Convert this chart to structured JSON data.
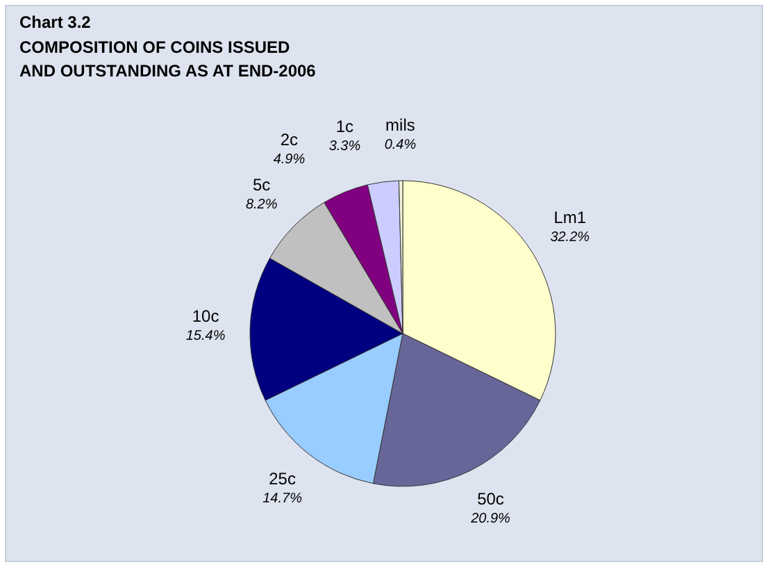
{
  "chart_data": {
    "type": "pie",
    "title": "Chart 3.2",
    "subtitle": "COMPOSITION OF COINS ISSUED\nAND OUTSTANDING AS AT END-2006",
    "categories": [
      "Lm1",
      "50c",
      "25c",
      "10c",
      "5c",
      "2c",
      "1c",
      "mils"
    ],
    "values": [
      32.2,
      20.9,
      14.7,
      15.4,
      8.2,
      4.9,
      3.3,
      0.4
    ],
    "value_labels": [
      "32.2%",
      "20.9%",
      "14.7%",
      "15.4%",
      "8.2%",
      "4.9%",
      "3.3%",
      "0.4%"
    ],
    "colors": [
      "#ffffcc",
      "#666699",
      "#99ccff",
      "#000080",
      "#c0c0c0",
      "#800080",
      "#ccccff",
      "#f2f2d9"
    ]
  }
}
